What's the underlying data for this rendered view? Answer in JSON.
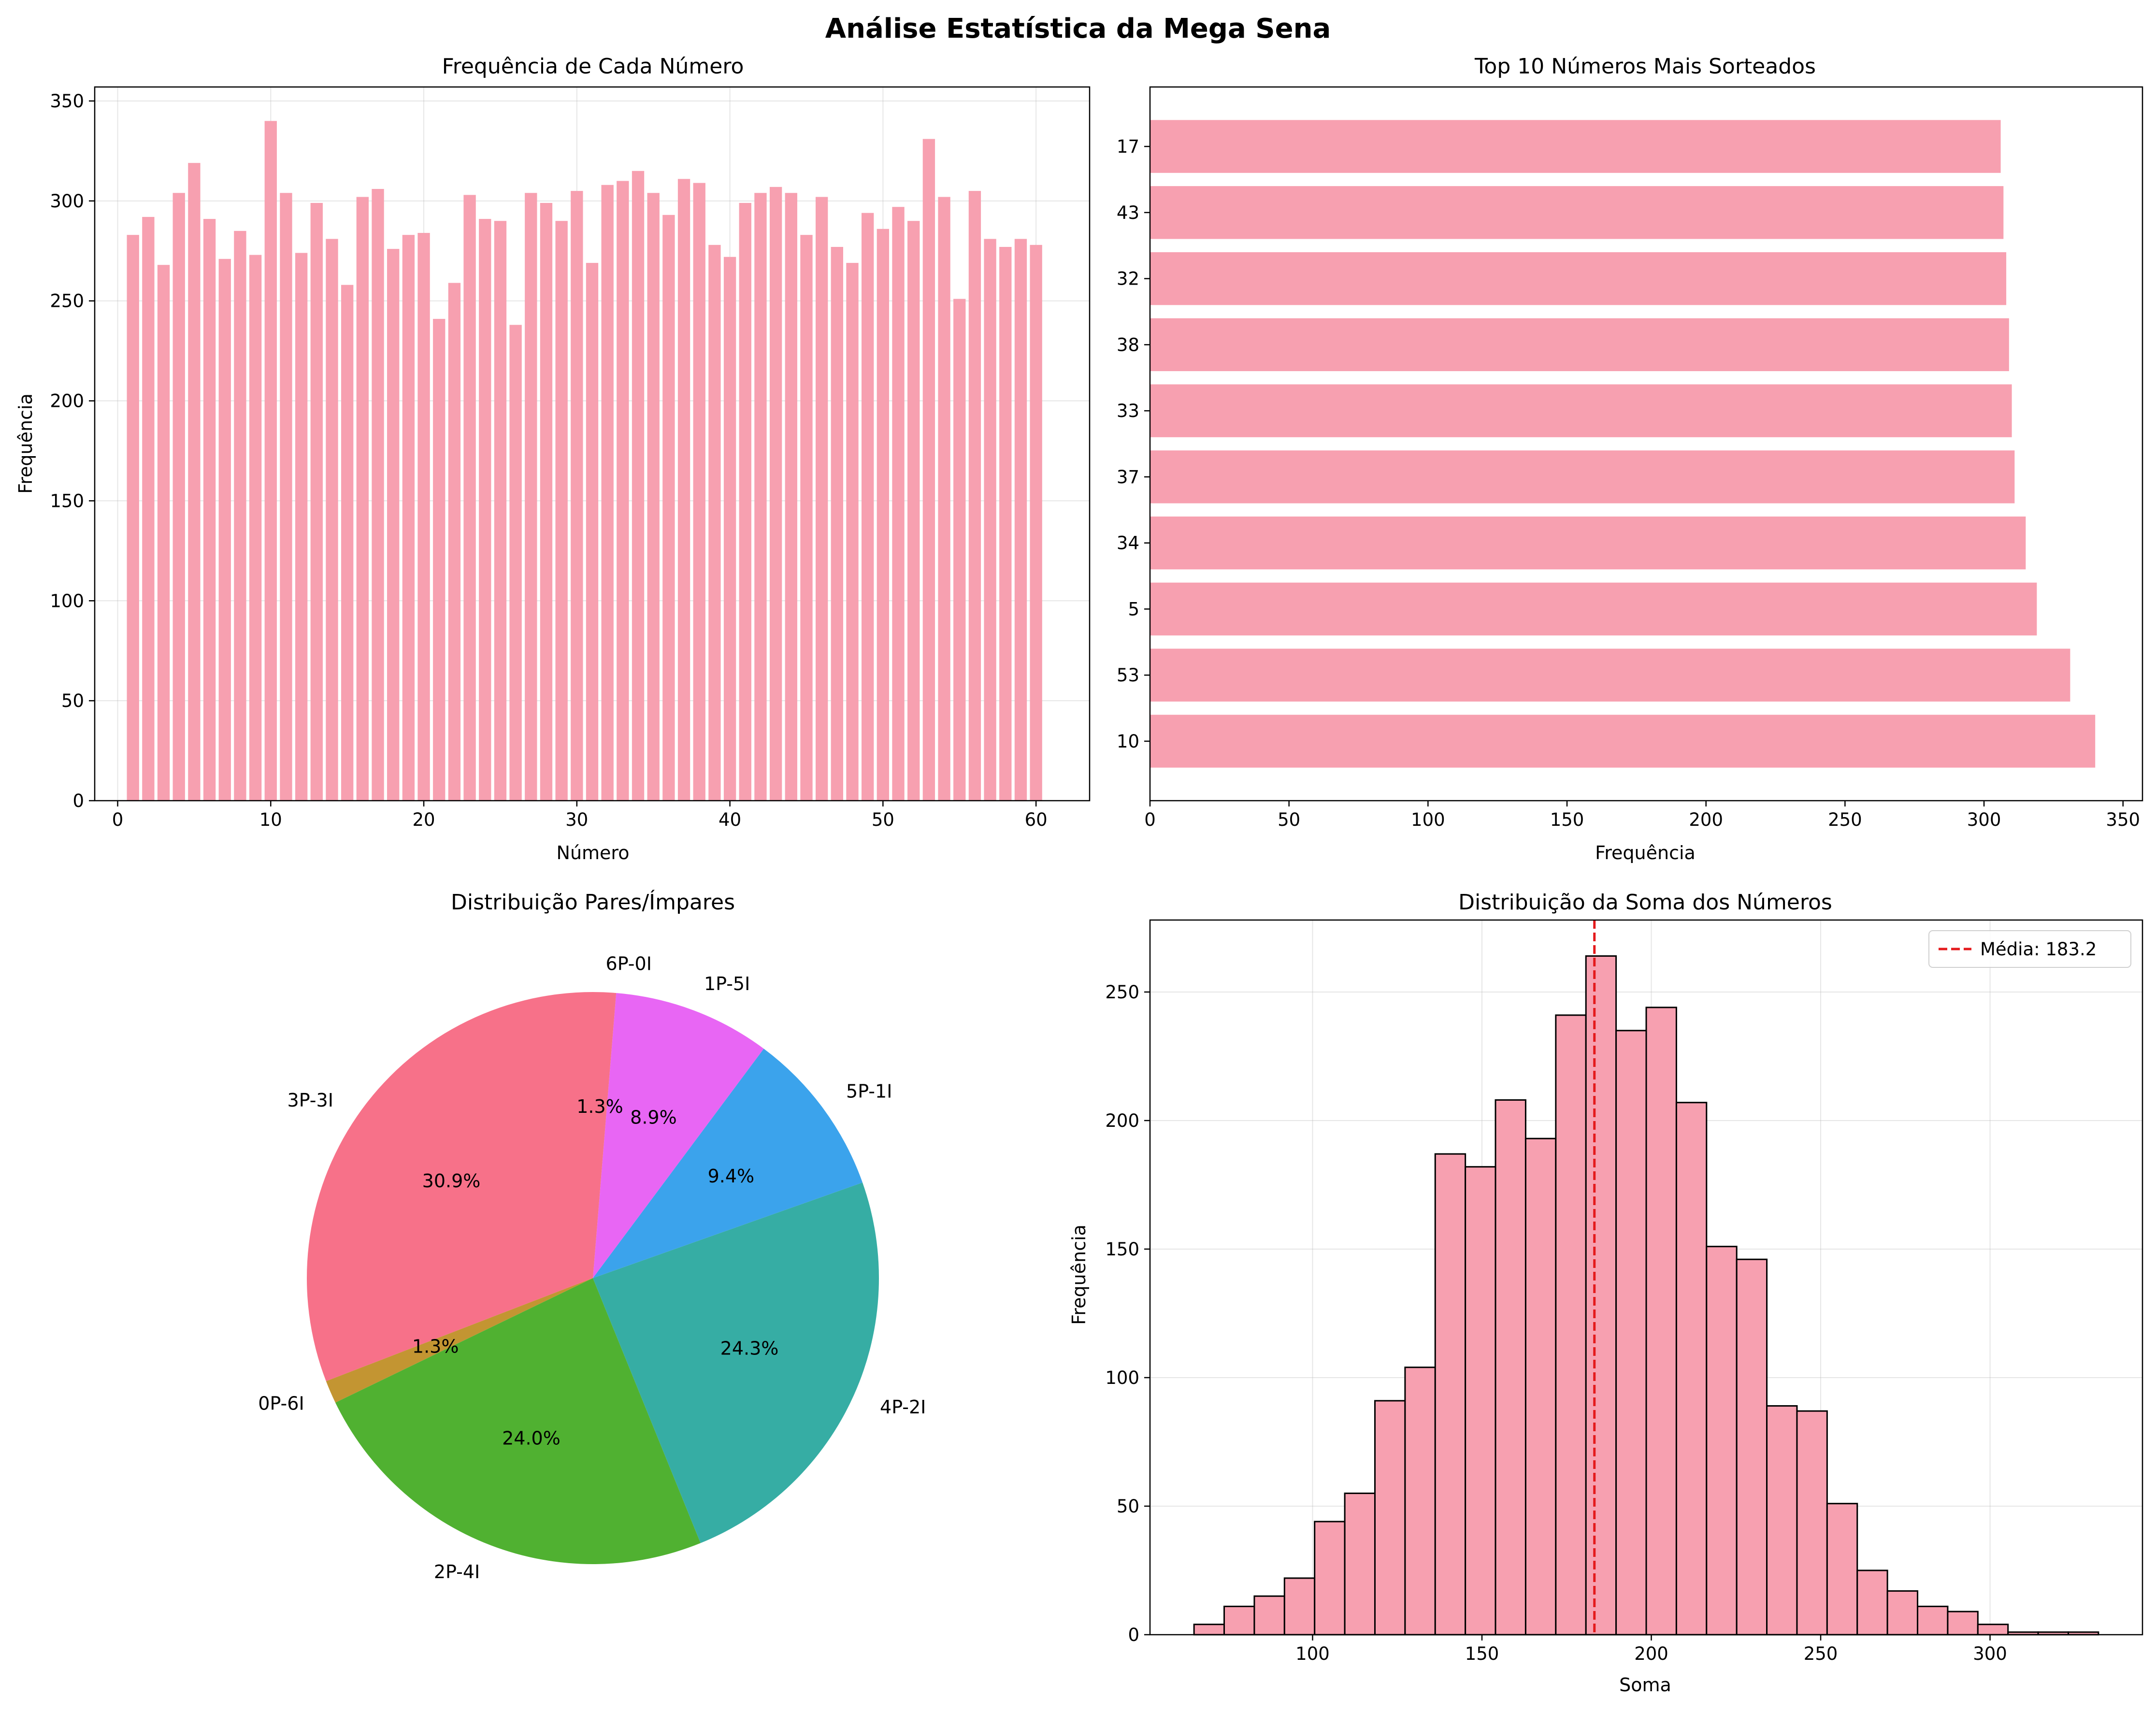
{
  "suptitle": "Análise Estatística da Mega Sena",
  "colors": {
    "bar": "#f7a0b0",
    "mean_line": "#e41a1c",
    "pie": [
      "#f77189",
      "#c39532",
      "#50b131",
      "#36ada4",
      "#3ba3ec",
      "#e866f4"
    ]
  },
  "chart_data": [
    {
      "type": "bar",
      "title": "Frequência de Cada Número",
      "xlabel": "Número",
      "ylabel": "Frequência",
      "xlim": [
        -1.5,
        63.5
      ],
      "ylim": [
        0,
        357
      ],
      "xticks": [
        0,
        10,
        20,
        30,
        40,
        50,
        60
      ],
      "yticks": [
        0,
        50,
        100,
        150,
        200,
        250,
        300,
        350
      ],
      "grid": true,
      "categories": [
        1,
        2,
        3,
        4,
        5,
        6,
        7,
        8,
        9,
        10,
        11,
        12,
        13,
        14,
        15,
        16,
        17,
        18,
        19,
        20,
        21,
        22,
        23,
        24,
        25,
        26,
        27,
        28,
        29,
        30,
        31,
        32,
        33,
        34,
        35,
        36,
        37,
        38,
        39,
        40,
        41,
        42,
        43,
        44,
        45,
        46,
        47,
        48,
        49,
        50,
        51,
        52,
        53,
        54,
        55,
        56,
        57,
        58,
        59,
        60
      ],
      "values": [
        283,
        292,
        268,
        304,
        319,
        291,
        271,
        285,
        273,
        340,
        304,
        274,
        299,
        281,
        258,
        302,
        306,
        276,
        283,
        284,
        241,
        259,
        303,
        291,
        290,
        238,
        304,
        299,
        290,
        305,
        269,
        308,
        310,
        315,
        304,
        293,
        311,
        309,
        278,
        272,
        299,
        304,
        307,
        304,
        283,
        302,
        277,
        269,
        294,
        286,
        297,
        290,
        331,
        302,
        251,
        305,
        281,
        277,
        281,
        278
      ]
    },
    {
      "type": "bar",
      "orientation": "horizontal",
      "title": "Top 10 Números Mais Sorteados",
      "xlabel": "Frequência",
      "ylabel": "",
      "xlim": [
        0,
        357
      ],
      "xticks": [
        0,
        50,
        100,
        150,
        200,
        250,
        300,
        350
      ],
      "grid": false,
      "categories": [
        "10",
        "53",
        "5",
        "34",
        "37",
        "33",
        "38",
        "32",
        "43",
        "17"
      ],
      "values": [
        340,
        331,
        319,
        315,
        311,
        310,
        309,
        308,
        307,
        306
      ]
    },
    {
      "type": "pie",
      "title": "Distribuição Pares/Ímpares",
      "labels": [
        "3P-3I",
        "0P-6I",
        "2P-4I",
        "4P-2I",
        "5P-1I",
        "1P-5I",
        "6P-0I"
      ],
      "values": [
        30.9,
        1.3,
        24.0,
        24.3,
        9.4,
        8.9,
        1.3
      ],
      "pct_labels": [
        "30.9%",
        "1.3%",
        "24.0%",
        "24.3%",
        "9.4%",
        "8.9%",
        "1.3%"
      ],
      "start_angle": 90,
      "direction": "counterclockwise"
    },
    {
      "type": "histogram",
      "title": "Distribuição da Soma dos Números",
      "xlabel": "Soma",
      "ylabel": "Frequência",
      "xlim": [
        52,
        345
      ],
      "ylim": [
        0,
        278
      ],
      "xticks": [
        100,
        150,
        200,
        250,
        300
      ],
      "yticks": [
        0,
        50,
        100,
        150,
        200,
        250
      ],
      "grid": true,
      "bin_start": 65,
      "bin_width": 8.9,
      "counts": [
        4,
        11,
        15,
        22,
        44,
        55,
        91,
        104,
        187,
        182,
        208,
        193,
        241,
        264,
        235,
        244,
        207,
        151,
        146,
        89,
        87,
        51,
        25,
        17,
        11,
        9,
        4,
        1,
        1,
        1
      ],
      "mean": 183.2,
      "legend": "Média: 183.2",
      "legend_position": "top-right"
    }
  ]
}
